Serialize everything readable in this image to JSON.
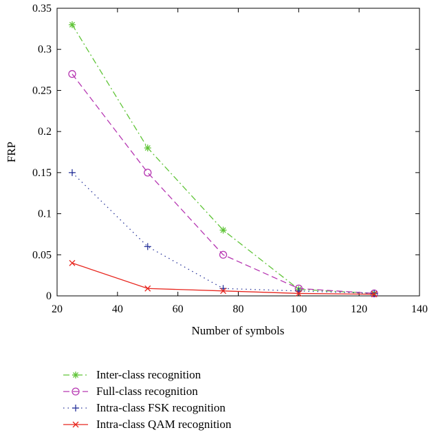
{
  "chart_data": {
    "type": "line",
    "title": "",
    "xlabel": "Number of symbols",
    "ylabel": "FRP",
    "xlim": [
      20,
      140
    ],
    "ylim": [
      0,
      0.35
    ],
    "xticks": [
      20,
      40,
      60,
      80,
      100,
      120,
      140
    ],
    "yticks": [
      0,
      0.05,
      0.1,
      0.15,
      0.2,
      0.25,
      0.3,
      0.35
    ],
    "xtick_labels": [
      "20",
      "40",
      "60",
      "80",
      "100",
      "120",
      "140"
    ],
    "ytick_labels": [
      "0",
      "0.05",
      "0.1",
      "0.15",
      "0.2",
      "0.25",
      "0.3",
      "0.35"
    ],
    "grid": false,
    "legend_position": "below",
    "x": [
      25,
      50,
      75,
      100,
      125
    ],
    "series": [
      {
        "name": "Inter-class recognition",
        "values": [
          0.33,
          0.18,
          0.08,
          0.008,
          0.003
        ],
        "color": "#5fc437",
        "dash": "dashdot",
        "marker": "star"
      },
      {
        "name": "Full-class recognition",
        "values": [
          0.27,
          0.15,
          0.05,
          0.009,
          0.003
        ],
        "color": "#b637b2",
        "dash": "dashed",
        "marker": "circle"
      },
      {
        "name": "Intra-class FSK recognition",
        "values": [
          0.15,
          0.06,
          0.009,
          0.006,
          0.003
        ],
        "color": "#27339a",
        "dash": "dotted",
        "marker": "plus"
      },
      {
        "name": "Intra-class QAM recognition",
        "values": [
          0.04,
          0.009,
          0.006,
          0.003,
          0.002
        ],
        "color": "#e8261e",
        "dash": "solid",
        "marker": "cross"
      }
    ]
  }
}
